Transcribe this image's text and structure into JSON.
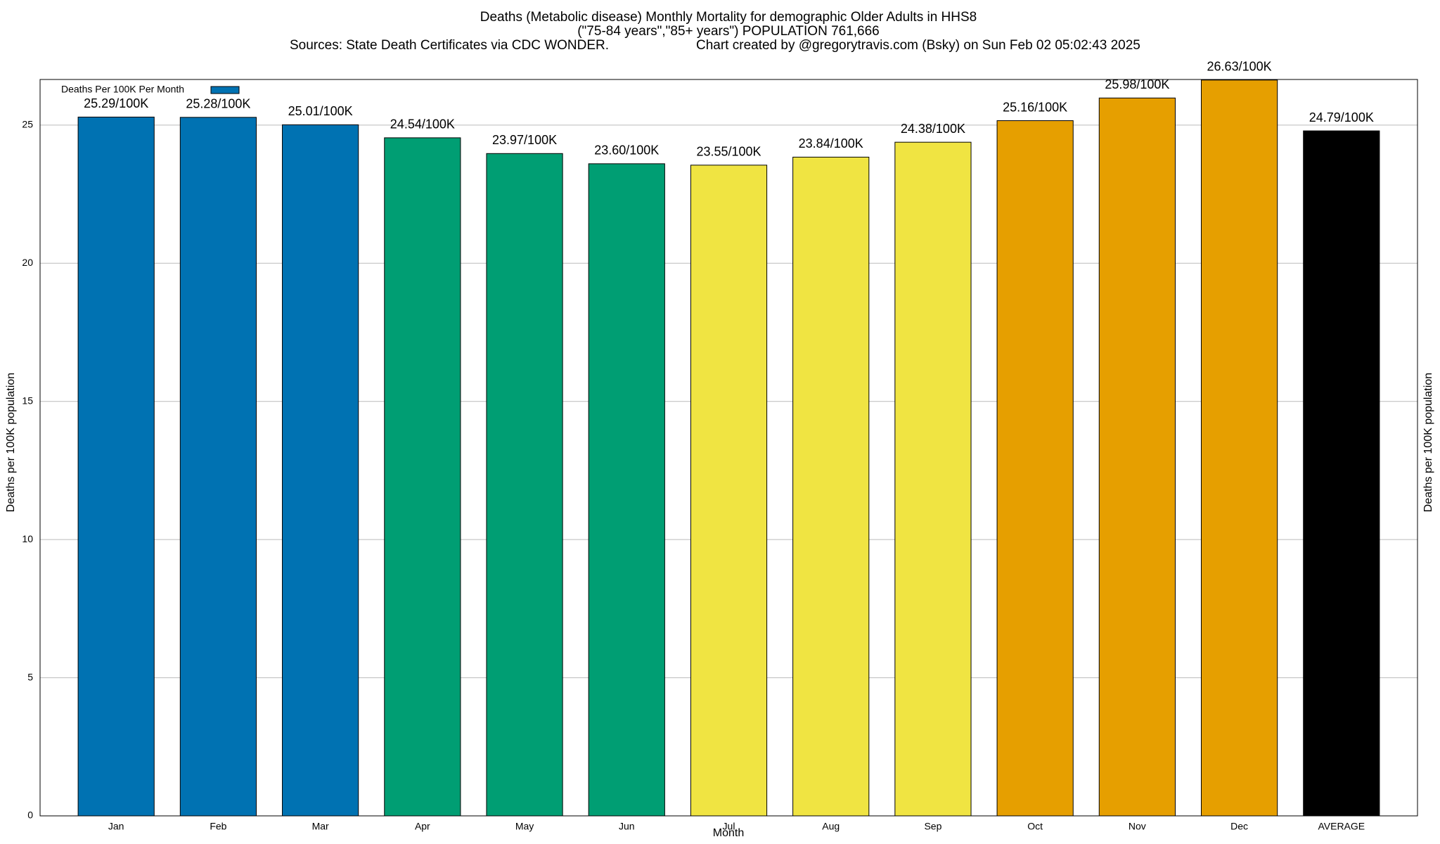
{
  "chart_data": {
    "type": "bar",
    "title": "Deaths (Metabolic disease) Monthly Mortality for demographic Older Adults in HHS8",
    "subtitle": "(\"75-84 years\",\"85+ years\") POPULATION 761,666",
    "sources": "Sources: State Death Certificates via CDC WONDER.",
    "credit": "Chart created by @gregorytravis.com (Bsky) on Sun Feb 02 05:02:43 2025",
    "x_label": "Month",
    "y_label": "Deaths per 100K population",
    "categories": [
      "Jan",
      "Feb",
      "Mar",
      "Apr",
      "May",
      "Jun",
      "Jul",
      "Aug",
      "Sep",
      "Oct",
      "Nov",
      "Dec",
      "AVERAGE"
    ],
    "series": [
      {
        "name": "Deaths Per 100K Per Month",
        "values": [
          25.29,
          25.28,
          25.01,
          24.54,
          23.97,
          23.6,
          23.55,
          23.84,
          24.38,
          25.16,
          25.98,
          26.63,
          24.79
        ],
        "value_labels": [
          "25.29/100K",
          "25.28/100K",
          "25.01/100K",
          "24.54/100K",
          "23.97/100K",
          "23.60/100K",
          "23.55/100K",
          "23.84/100K",
          "24.38/100K",
          "25.16/100K",
          "25.98/100K",
          "26.63/100K",
          "24.79/100K"
        ],
        "colors": [
          "#0072b2",
          "#0072b2",
          "#0072b2",
          "#009e73",
          "#009e73",
          "#009e73",
          "#f0e442",
          "#f0e442",
          "#f0e442",
          "#e69f00",
          "#e69f00",
          "#e69f00",
          "#000000"
        ]
      }
    ],
    "ylim": [
      0,
      26.65
    ],
    "yticks": [
      0,
      5,
      10,
      15,
      20,
      25
    ],
    "grid": true,
    "legend": "top-left"
  }
}
